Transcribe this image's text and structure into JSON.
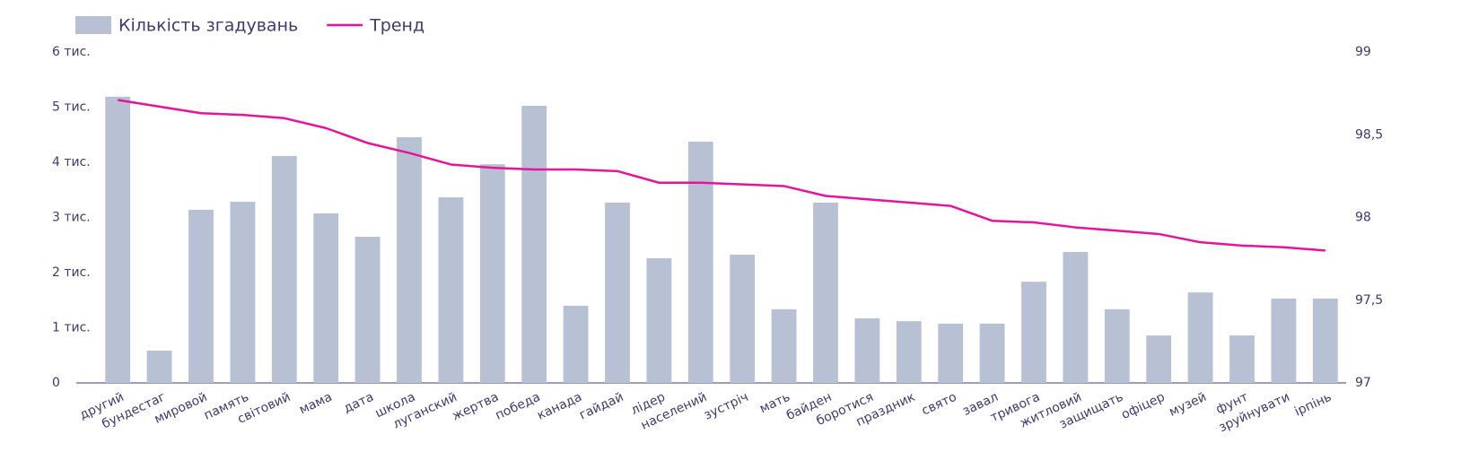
{
  "chart_data": {
    "type": "bar",
    "categories": [
      "другий",
      "бундестаг",
      "мировой",
      "память",
      "світовий",
      "мама",
      "дата",
      "школа",
      "луганский",
      "жертва",
      "победа",
      "канада",
      "гайдай",
      "лідер",
      "населений",
      "зустріч",
      "мать",
      "байден",
      "боротися",
      "праздник",
      "свято",
      "завал",
      "тривога",
      "житловий",
      "защищать",
      "офіцер",
      "музей",
      "фунт",
      "зруйнувати",
      "ірпінь"
    ],
    "series": [
      {
        "name": "Кількість згадувань",
        "type": "bar",
        "color": "#b8c0d4",
        "values": [
          5190,
          585,
          3140,
          3285,
          4115,
          3075,
          2650,
          4455,
          3365,
          3965,
          5025,
          1400,
          3270,
          2260,
          4375,
          2325,
          1335,
          3270,
          1170,
          1120,
          1075,
          1075,
          1835,
          2375,
          1335,
          860,
          1640,
          860,
          1530,
          1530
        ]
      },
      {
        "name": "Тренд",
        "type": "line",
        "axis": "y2",
        "color": "#e6149a",
        "values": [
          98.71,
          98.67,
          98.63,
          98.62,
          98.6,
          98.54,
          98.45,
          98.39,
          98.32,
          98.3,
          98.29,
          98.29,
          98.28,
          98.21,
          98.21,
          98.2,
          98.19,
          98.13,
          98.11,
          98.09,
          98.07,
          97.98,
          97.97,
          97.94,
          97.92,
          97.9,
          97.85,
          97.83,
          97.82,
          97.8
        ]
      }
    ],
    "ylim": [
      0,
      6000
    ],
    "yticks": [
      {
        "value": 0,
        "label": "0"
      },
      {
        "value": 1000,
        "label": "1 тис."
      },
      {
        "value": 2000,
        "label": "2 тис."
      },
      {
        "value": 3000,
        "label": "3 тис."
      },
      {
        "value": 4000,
        "label": "4 тис."
      },
      {
        "value": 5000,
        "label": "5 тис."
      },
      {
        "value": 6000,
        "label": "6 тис."
      }
    ],
    "y2lim": [
      97,
      99
    ],
    "y2ticks": [
      97,
      {
        "value": 97.5,
        "label": "97,5"
      },
      98,
      {
        "value": 98.5,
        "label": "98,5"
      },
      99
    ],
    "grid": false,
    "legend": "top-left"
  }
}
